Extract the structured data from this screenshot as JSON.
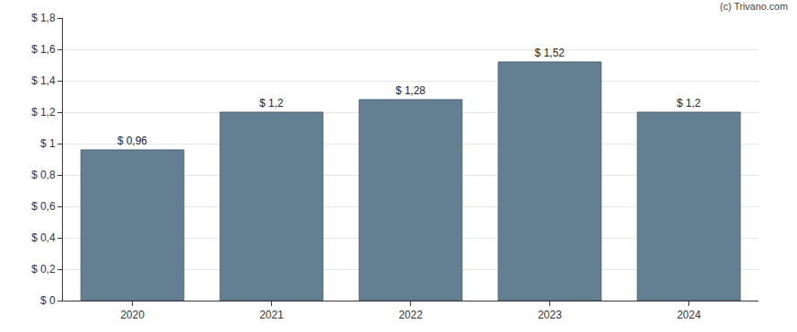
{
  "chart_data": {
    "type": "bar",
    "annotations": [
      "(c) Trivano.com"
    ],
    "categories": [
      "2020",
      "2021",
      "2022",
      "2023",
      "2024"
    ],
    "values": [
      0.96,
      1.2,
      1.28,
      1.52,
      1.2
    ],
    "value_labels": [
      "$ 0,96",
      "$ 1,2",
      "$ 1,28",
      "$ 1,52",
      "$ 1,2"
    ],
    "data_labels": true,
    "color": "#647f91",
    "ylim": [
      0,
      1.8
    ],
    "yticks": [
      {
        "value": 0,
        "label": "$ 0"
      },
      {
        "value": 0.2,
        "label": "$ 0,2"
      },
      {
        "value": 0.4,
        "label": "$ 0,4"
      },
      {
        "value": 0.6,
        "label": "$ 0,6"
      },
      {
        "value": 0.8,
        "label": "$ 0,8"
      },
      {
        "value": 1,
        "label": "$ 1"
      },
      {
        "value": 1.2,
        "label": "$ 1,2"
      },
      {
        "value": 1.4,
        "label": "$ 1,4"
      },
      {
        "value": 1.6,
        "label": "$ 1,6"
      },
      {
        "value": 1.8,
        "label": "$ 1,8"
      }
    ],
    "grid": true
  }
}
